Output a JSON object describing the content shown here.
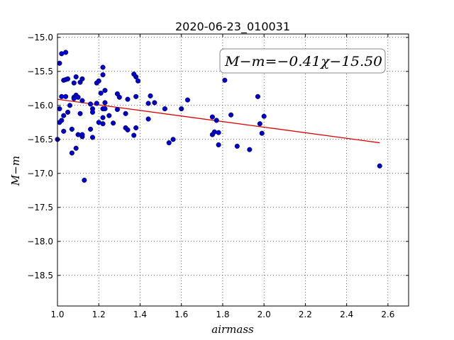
{
  "chart_data": {
    "type": "scatter",
    "title": "2020-06-23_010031",
    "xlabel": "airmass",
    "ylabel": "M−m",
    "xlim": [
      1.0,
      2.7
    ],
    "ylim": [
      -18.95,
      -14.95
    ],
    "y_inverted": true,
    "grid": true,
    "grid_style": "dotted",
    "xticks": [
      1.0,
      1.2,
      1.4,
      1.6,
      1.8,
      2.0,
      2.2,
      2.4,
      2.6
    ],
    "xtick_labels": [
      "1.0",
      "1.2",
      "1.4",
      "1.6",
      "1.8",
      "2.0",
      "2.2",
      "2.4",
      "2.6"
    ],
    "yticks": [
      -15.0,
      -15.5,
      -16.0,
      -16.5,
      -17.0,
      -17.5,
      -18.0,
      -18.5
    ],
    "ytick_labels": [
      "−15.0",
      "−15.5",
      "−16.0",
      "−16.5",
      "−17.0",
      "−17.5",
      "−18.0",
      "−18.5"
    ],
    "annotation": "M−m=−0.41χ−15.50",
    "annotation_placement": "top-right",
    "fit": {
      "slope": -0.41,
      "intercept": -15.5,
      "x_range": [
        1.0,
        2.56
      ],
      "color": "#dd0000"
    },
    "point_color": "#0000cc",
    "points": [
      [
        1.0,
        -16.5
      ],
      [
        1.01,
        -16.25
      ],
      [
        1.01,
        -16.05
      ],
      [
        1.01,
        -15.38
      ],
      [
        1.02,
        -16.22
      ],
      [
        1.02,
        -15.87
      ],
      [
        1.02,
        -15.24
      ],
      [
        1.03,
        -16.38
      ],
      [
        1.03,
        -16.15
      ],
      [
        1.03,
        -15.63
      ],
      [
        1.04,
        -15.22
      ],
      [
        1.04,
        -15.62
      ],
      [
        1.04,
        -15.87
      ],
      [
        1.05,
        -16.1
      ],
      [
        1.05,
        -15.61
      ],
      [
        1.06,
        -16.0
      ],
      [
        1.07,
        -16.35
      ],
      [
        1.07,
        -16.7
      ],
      [
        1.08,
        -15.67
      ],
      [
        1.08,
        -15.88
      ],
      [
        1.08,
        -15.9
      ],
      [
        1.09,
        -15.85
      ],
      [
        1.09,
        -16.63
      ],
      [
        1.09,
        -15.58
      ],
      [
        1.1,
        -15.88
      ],
      [
        1.1,
        -16.43
      ],
      [
        1.11,
        -16.12
      ],
      [
        1.11,
        -15.66
      ],
      [
        1.12,
        -16.46
      ],
      [
        1.12,
        -16.43
      ],
      [
        1.12,
        -15.61
      ],
      [
        1.12,
        -15.93
      ],
      [
        1.13,
        -17.1
      ],
      [
        1.16,
        -15.98
      ],
      [
        1.16,
        -16.35
      ],
      [
        1.17,
        -16.05
      ],
      [
        1.17,
        -16.47
      ],
      [
        1.17,
        -16.1
      ],
      [
        1.19,
        -15.97
      ],
      [
        1.19,
        -15.67
      ],
      [
        1.2,
        -16.25
      ],
      [
        1.2,
        -15.64
      ],
      [
        1.21,
        -15.82
      ],
      [
        1.22,
        -15.44
      ],
      [
        1.22,
        -15.55
      ],
      [
        1.22,
        -16.05
      ],
      [
        1.22,
        -16.18
      ],
      [
        1.22,
        -16.27
      ],
      [
        1.23,
        -15.96
      ],
      [
        1.23,
        -15.78
      ],
      [
        1.23,
        -16.05
      ],
      [
        1.25,
        -16.15
      ],
      [
        1.27,
        -16.26
      ],
      [
        1.29,
        -16.06
      ],
      [
        1.29,
        -15.83
      ],
      [
        1.3,
        -15.88
      ],
      [
        1.33,
        -16.33
      ],
      [
        1.33,
        -16.12
      ],
      [
        1.34,
        -15.91
      ],
      [
        1.34,
        -16.36
      ],
      [
        1.37,
        -16.44
      ],
      [
        1.37,
        -15.54
      ],
      [
        1.38,
        -15.58
      ],
      [
        1.38,
        -16.33
      ],
      [
        1.38,
        -15.87
      ],
      [
        1.39,
        -15.64
      ],
      [
        1.44,
        -16.2
      ],
      [
        1.44,
        -15.97
      ],
      [
        1.45,
        -15.86
      ],
      [
        1.47,
        -15.96
      ],
      [
        1.52,
        -16.05
      ],
      [
        1.54,
        -16.55
      ],
      [
        1.56,
        -16.5
      ],
      [
        1.6,
        -16.05
      ],
      [
        1.63,
        -15.92
      ],
      [
        1.75,
        -16.43
      ],
      [
        1.75,
        -16.17
      ],
      [
        1.76,
        -16.39
      ],
      [
        1.77,
        -16.22
      ],
      [
        1.78,
        -16.4
      ],
      [
        1.78,
        -16.58
      ],
      [
        1.81,
        -15.63
      ],
      [
        1.84,
        -16.14
      ],
      [
        1.87,
        -16.6
      ],
      [
        1.93,
        -16.65
      ],
      [
        1.97,
        -15.87
      ],
      [
        1.98,
        -16.27
      ],
      [
        1.99,
        -16.41
      ],
      [
        2.0,
        -16.16
      ],
      [
        2.56,
        -16.89
      ]
    ]
  }
}
